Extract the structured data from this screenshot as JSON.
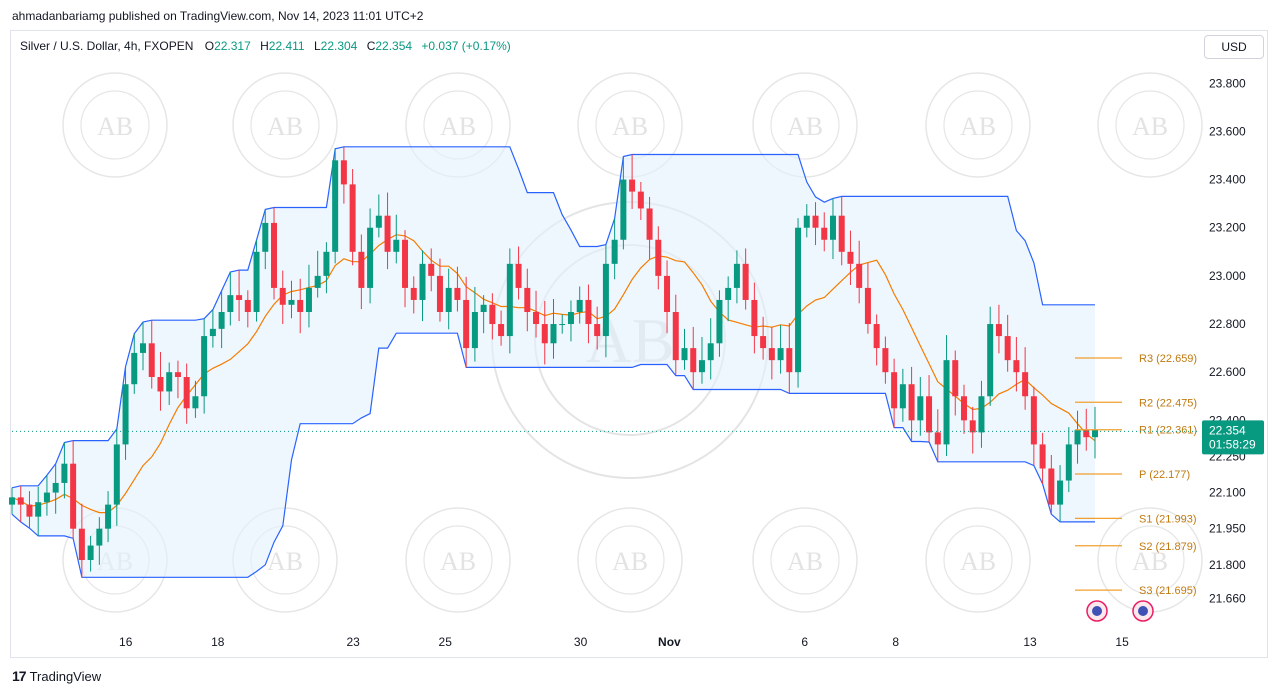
{
  "header": {
    "published": "ahmadanbariamg published on TradingView.com, Nov 14, 2023 11:01 UTC+2"
  },
  "legend": {
    "symbol": "Silver / U.S. Dollar, 4h, FXOPEN",
    "o_label": "O",
    "o": "22.317",
    "h_label": "H",
    "h": "22.411",
    "l_label": "L",
    "l": "22.304",
    "c_label": "C",
    "c": "22.354",
    "change": "+0.037 (+0.17%)"
  },
  "currency_button": "USD",
  "watermark": {
    "letters": "AB",
    "ring_text": "ARABIAN BUSINESS ACADEMY"
  },
  "footer": {
    "brand": "TradingView",
    "logo_icon": "tradingview-logo-icon"
  },
  "colors": {
    "up": "#089981",
    "down": "#f23645",
    "channel_line": "#2962ff",
    "channel_fill": "#e3f2fd",
    "basis": "#f57c00",
    "pivot": "#f0a030"
  },
  "chart_data": {
    "type": "candlestick",
    "timeframe": "4h",
    "ylim": [
      21.55,
      23.88
    ],
    "y_ticks": [
      "21.660",
      "21.800",
      "21.950",
      "22.100",
      "22.250",
      "22.400",
      "22.600",
      "22.800",
      "23.000",
      "23.200",
      "23.400",
      "23.600",
      "23.800"
    ],
    "x_ticks": [
      "16",
      "18",
      "23",
      "25",
      "30",
      "Nov",
      "6",
      "8",
      "13",
      "15"
    ],
    "last_price": "22.354",
    "countdown": "01:58:29",
    "pivot_levels": [
      {
        "label": "R3",
        "value": 22.659,
        "text": "R3 (22.659)"
      },
      {
        "label": "R2",
        "value": 22.475,
        "text": "R2 (22.475)"
      },
      {
        "label": "R1",
        "value": 22.361,
        "text": "R1 (22.361)"
      },
      {
        "label": "P",
        "value": 22.177,
        "text": "P (22.177)"
      },
      {
        "label": "S1",
        "value": 21.993,
        "text": "S1 (21.993)"
      },
      {
        "label": "S2",
        "value": 21.879,
        "text": "S2 (21.879)"
      },
      {
        "label": "S3",
        "value": 21.695,
        "text": "S3 (21.695)"
      }
    ],
    "close": [
      22.08,
      22.05,
      22.0,
      22.06,
      22.1,
      22.14,
      22.22,
      21.95,
      21.82,
      21.88,
      21.95,
      22.05,
      22.3,
      22.55,
      22.68,
      22.72,
      22.58,
      22.52,
      22.6,
      22.58,
      22.45,
      22.5,
      22.75,
      22.78,
      22.85,
      22.92,
      22.9,
      22.85,
      23.1,
      23.22,
      22.95,
      22.88,
      22.9,
      22.85,
      22.95,
      23.0,
      23.1,
      23.48,
      23.38,
      23.1,
      22.95,
      23.2,
      23.25,
      23.1,
      23.15,
      22.95,
      22.9,
      23.05,
      23.0,
      22.85,
      22.95,
      22.9,
      22.7,
      22.85,
      22.88,
      22.8,
      22.75,
      23.05,
      22.95,
      22.85,
      22.8,
      22.72,
      22.8,
      22.8,
      22.85,
      22.9,
      22.8,
      22.75,
      23.05,
      23.15,
      23.4,
      23.35,
      23.28,
      23.15,
      23.0,
      22.85,
      22.65,
      22.7,
      22.6,
      22.65,
      22.72,
      22.9,
      22.95,
      23.05,
      22.9,
      22.75,
      22.7,
      22.65,
      22.7,
      22.6,
      23.2,
      23.25,
      23.2,
      23.15,
      23.25,
      23.1,
      23.05,
      22.95,
      22.8,
      22.7,
      22.6,
      22.45,
      22.55,
      22.4,
      22.5,
      22.35,
      22.3,
      22.65,
      22.5,
      22.4,
      22.35,
      22.5,
      22.8,
      22.75,
      22.65,
      22.6,
      22.5,
      22.3,
      22.2,
      22.05,
      22.15,
      22.3,
      22.36,
      22.33,
      22.36
    ]
  }
}
